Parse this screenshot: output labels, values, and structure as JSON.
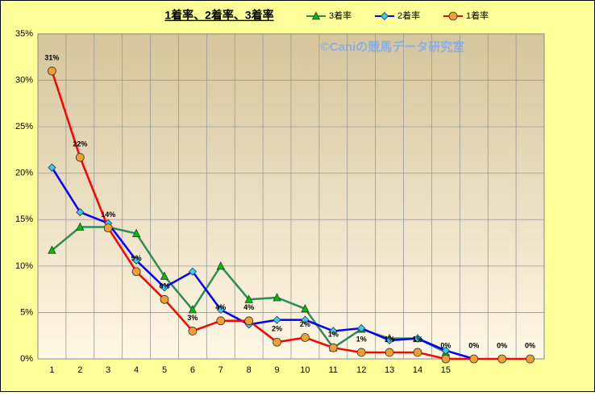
{
  "chart_data": {
    "type": "line",
    "title": "1着率、2着率、3着率",
    "annotation": "©Caniの競馬データ研究室",
    "categories": [
      "1",
      "2",
      "3",
      "4",
      "5",
      "6",
      "7",
      "8",
      "9",
      "10",
      "11",
      "12",
      "13",
      "14",
      "15",
      null,
      null,
      null
    ],
    "ylim": [
      0,
      35
    ],
    "yticks": [
      {
        "value": 0,
        "label": "0%"
      },
      {
        "value": 5,
        "label": "5%"
      },
      {
        "value": 10,
        "label": "10%"
      },
      {
        "value": 15,
        "label": "15%"
      },
      {
        "value": 20,
        "label": "20%"
      },
      {
        "value": 25,
        "label": "25%"
      },
      {
        "value": 30,
        "label": "30%"
      },
      {
        "value": 35,
        "label": "35%"
      }
    ],
    "grid": true,
    "series": [
      {
        "name": "3着率",
        "color": "#2e8b57",
        "marker": "triangle",
        "marker_fill": "#00c000",
        "values": [
          11.7,
          14.2,
          14.2,
          13.5,
          8.9,
          5.3,
          10.0,
          6.4,
          6.6,
          5.4,
          1.2,
          3.2,
          2.2,
          2.2,
          0.7,
          null,
          null,
          null
        ]
      },
      {
        "name": "2着率",
        "color": "#0000ff",
        "marker": "diamond",
        "marker_fill": "#33ccff",
        "values": [
          20.6,
          15.8,
          14.6,
          10.6,
          7.7,
          9.4,
          5.3,
          3.7,
          4.2,
          4.2,
          3.0,
          3.3,
          2.0,
          2.2,
          0.9,
          0,
          null,
          null
        ]
      },
      {
        "name": "1着率",
        "color": "#ff0000",
        "marker": "circle",
        "marker_fill": "#f0a030",
        "values": [
          31.0,
          21.7,
          14.1,
          9.4,
          6.4,
          3.0,
          4.1,
          4.1,
          1.8,
          2.3,
          1.2,
          0.7,
          0.7,
          0.7,
          0,
          0,
          0,
          0
        ],
        "value_labels": [
          "31%",
          "22%",
          "14%",
          "9%",
          "6%",
          "3%",
          "4%",
          "4%",
          "2%",
          "2%",
          "1%",
          "1%",
          "1%",
          "1%",
          "0%",
          "0%",
          "0%",
          "0%"
        ]
      }
    ]
  }
}
